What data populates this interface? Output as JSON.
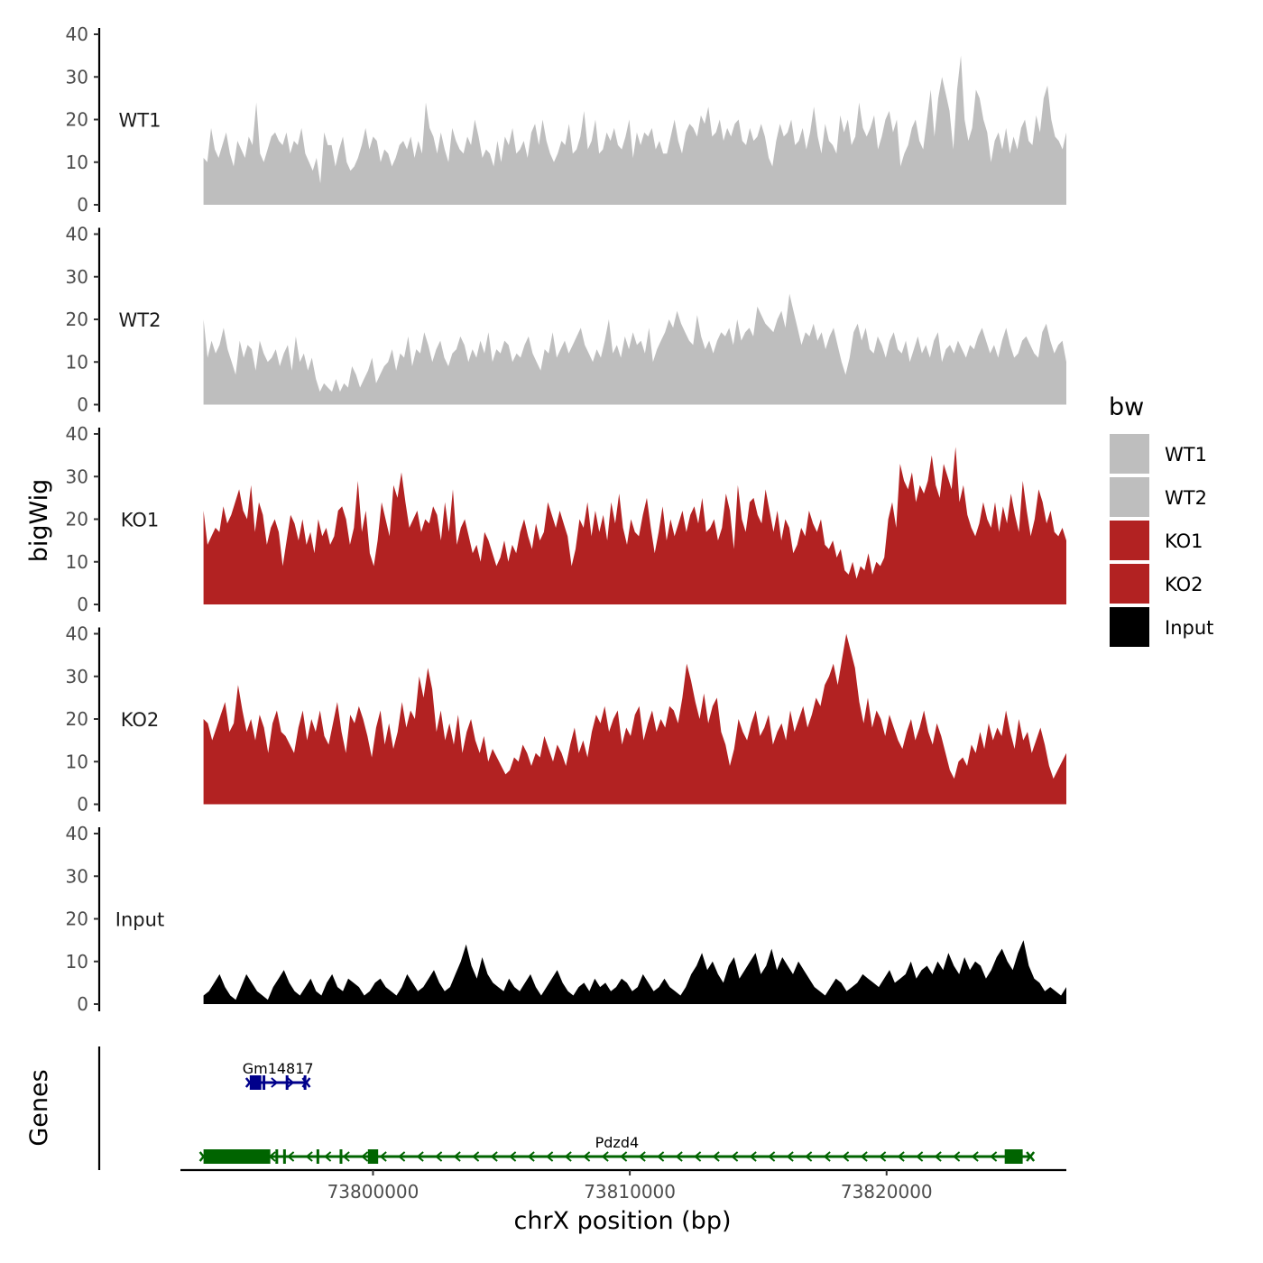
{
  "chart_data": {
    "type": "area",
    "ylabel": "bigWig",
    "xlabel": "chrX position (bp)",
    "xlim": [
      73792500,
      73827000
    ],
    "x_ticks": [
      73800000,
      73810000,
      73820000
    ],
    "x_tick_labels": [
      "73800000",
      "73810000",
      "73820000"
    ],
    "data_range": [
      73793400,
      73827000
    ],
    "ylim": [
      0,
      40
    ],
    "y_ticks": [
      0,
      10,
      20,
      30,
      40
    ],
    "y_tick_labels": [
      "0",
      "10",
      "20",
      "30",
      "40"
    ],
    "legend": {
      "title": "bw",
      "position": "right",
      "entries": [
        {
          "label": "WT1",
          "color": "#bebebe"
        },
        {
          "label": "WT2",
          "color": "#bebebe"
        },
        {
          "label": "KO1",
          "color": "#b22222"
        },
        {
          "label": "KO2",
          "color": "#b22222"
        },
        {
          "label": "Input",
          "color": "#000000"
        }
      ]
    },
    "series": [
      {
        "name": "WT1",
        "color": "#bebebe",
        "values": [
          11,
          10,
          18,
          13,
          11,
          14,
          17,
          12,
          9,
          15,
          13,
          11,
          16,
          14,
          24,
          12,
          10,
          13,
          16,
          17,
          15,
          14,
          17,
          12,
          15,
          14,
          18,
          12,
          10,
          8,
          11,
          5,
          17,
          14,
          14,
          9,
          13,
          16,
          10,
          8,
          9,
          11,
          14,
          18,
          13,
          16,
          15,
          10,
          13,
          12,
          9,
          11,
          14,
          15,
          13,
          16,
          11,
          15,
          12,
          24,
          18,
          16,
          12,
          17,
          13,
          10,
          18,
          15,
          13,
          12,
          16,
          14,
          20,
          16,
          11,
          13,
          12,
          9,
          15,
          10,
          16,
          14,
          18,
          12,
          13,
          15,
          11,
          17,
          19,
          14,
          20,
          15,
          12,
          10,
          12,
          15,
          14,
          19,
          12,
          13,
          16,
          22,
          13,
          15,
          20,
          12,
          13,
          17,
          15,
          18,
          14,
          13,
          16,
          20,
          11,
          17,
          14,
          17,
          16,
          18,
          13,
          15,
          12,
          12,
          16,
          20,
          15,
          12,
          17,
          19,
          18,
          16,
          21,
          19,
          23,
          16,
          17,
          20,
          15,
          18,
          16,
          19,
          20,
          15,
          14,
          18,
          15,
          16,
          19,
          16,
          11,
          9,
          15,
          19,
          16,
          17,
          20,
          14,
          15,
          18,
          13,
          17,
          23,
          16,
          12,
          19,
          15,
          14,
          12,
          21,
          17,
          20,
          14,
          16,
          24,
          18,
          16,
          18,
          21,
          13,
          16,
          20,
          22,
          17,
          20,
          9,
          12,
          14,
          18,
          20,
          15,
          13,
          20,
          27,
          16,
          25,
          30,
          26,
          22,
          13,
          27,
          35,
          20,
          15,
          18,
          27,
          25,
          20,
          17,
          10,
          15,
          17,
          13,
          18,
          12,
          16,
          13,
          18,
          20,
          15,
          14,
          21,
          17,
          25,
          28,
          20,
          16,
          15,
          13,
          17
        ]
      },
      {
        "name": "WT2",
        "color": "#bebebe",
        "values": [
          20,
          11,
          15,
          12,
          14,
          18,
          13,
          10,
          7,
          15,
          11,
          14,
          13,
          8,
          15,
          12,
          10,
          11,
          13,
          9,
          12,
          14,
          8,
          16,
          10,
          12,
          8,
          11,
          6,
          3,
          5,
          4,
          3,
          6,
          3,
          5,
          4,
          9,
          7,
          4,
          6,
          8,
          11,
          5,
          7,
          9,
          10,
          13,
          8,
          12,
          11,
          16,
          9,
          13,
          12,
          17,
          14,
          10,
          13,
          15,
          11,
          9,
          12,
          13,
          16,
          14,
          10,
          13,
          11,
          15,
          12,
          17,
          10,
          13,
          12,
          15,
          14,
          10,
          12,
          11,
          14,
          16,
          12,
          10,
          8,
          13,
          12,
          17,
          11,
          13,
          15,
          12,
          14,
          16,
          18,
          14,
          12,
          10,
          13,
          11,
          15,
          20,
          12,
          14,
          11,
          16,
          13,
          17,
          14,
          15,
          12,
          18,
          10,
          13,
          15,
          17,
          20,
          18,
          22,
          19,
          17,
          15,
          14,
          21,
          16,
          13,
          15,
          12,
          15,
          17,
          16,
          18,
          14,
          20,
          15,
          17,
          18,
          16,
          23,
          21,
          19,
          18,
          17,
          20,
          22,
          18,
          26,
          22,
          18,
          14,
          17,
          16,
          19,
          15,
          17,
          13,
          16,
          18,
          14,
          10,
          7,
          11,
          17,
          19,
          15,
          18,
          13,
          12,
          16,
          14,
          11,
          15,
          17,
          13,
          12,
          15,
          10,
          13,
          16,
          12,
          14,
          11,
          15,
          17,
          10,
          13,
          14,
          12,
          15,
          13,
          11,
          14,
          13,
          16,
          18,
          15,
          12,
          14,
          11,
          15,
          18,
          14,
          11,
          12,
          15,
          16,
          14,
          12,
          11,
          17,
          19,
          15,
          12,
          14,
          15,
          10
        ]
      },
      {
        "name": "KO1",
        "color": "#b22222",
        "values": [
          22,
          14,
          16,
          18,
          17,
          23,
          19,
          21,
          24,
          27,
          22,
          20,
          28,
          17,
          24,
          21,
          14,
          18,
          20,
          17,
          9,
          15,
          21,
          19,
          15,
          20,
          14,
          17,
          12,
          20,
          16,
          18,
          14,
          16,
          22,
          23,
          20,
          14,
          18,
          29,
          17,
          22,
          12,
          9,
          15,
          24,
          20,
          16,
          28,
          25,
          31,
          24,
          18,
          20,
          22,
          17,
          20,
          19,
          23,
          21,
          15,
          24,
          17,
          27,
          14,
          18,
          20,
          16,
          12,
          14,
          10,
          17,
          15,
          12,
          9,
          11,
          15,
          10,
          14,
          12,
          17,
          20,
          16,
          13,
          19,
          15,
          17,
          24,
          21,
          18,
          22,
          19,
          16,
          9,
          13,
          20,
          18,
          24,
          16,
          22,
          17,
          21,
          15,
          24,
          19,
          26,
          18,
          14,
          20,
          17,
          16,
          21,
          25,
          18,
          12,
          17,
          23,
          15,
          20,
          16,
          19,
          22,
          17,
          21,
          23,
          19,
          25,
          17,
          18,
          20,
          15,
          18,
          26,
          22,
          13,
          28,
          20,
          17,
          24,
          25,
          21,
          19,
          27,
          22,
          17,
          22,
          15,
          20,
          18,
          12,
          14,
          18,
          16,
          22,
          19,
          17,
          20,
          14,
          13,
          15,
          11,
          13,
          8,
          7,
          10,
          6,
          9,
          8,
          12,
          7,
          10,
          9,
          11,
          20,
          24,
          18,
          33,
          29,
          27,
          31,
          24,
          28,
          26,
          29,
          35,
          28,
          25,
          33,
          30,
          27,
          37,
          24,
          28,
          21,
          18,
          16,
          19,
          24,
          20,
          18,
          24,
          17,
          23,
          19,
          26,
          21,
          17,
          29,
          22,
          16,
          20,
          27,
          24,
          19,
          22,
          17,
          16,
          18,
          15
        ]
      },
      {
        "name": "KO2",
        "color": "#b22222",
        "values": [
          20,
          19,
          15,
          18,
          21,
          24,
          17,
          19,
          28,
          22,
          17,
          20,
          15,
          21,
          18,
          12,
          19,
          22,
          17,
          16,
          14,
          12,
          18,
          22,
          15,
          20,
          17,
          22,
          16,
          14,
          19,
          24,
          17,
          12,
          21,
          19,
          23,
          20,
          16,
          11,
          18,
          22,
          14,
          19,
          13,
          17,
          24,
          18,
          22,
          20,
          30,
          25,
          32,
          27,
          17,
          22,
          15,
          19,
          14,
          21,
          12,
          17,
          20,
          15,
          12,
          16,
          10,
          13,
          11,
          9,
          7,
          8,
          11,
          10,
          14,
          12,
          9,
          12,
          11,
          16,
          13,
          10,
          14,
          12,
          9,
          14,
          18,
          12,
          15,
          11,
          17,
          21,
          19,
          23,
          17,
          20,
          22,
          14,
          18,
          16,
          21,
          23,
          15,
          19,
          22,
          17,
          20,
          18,
          23,
          22,
          19,
          25,
          33,
          29,
          24,
          20,
          26,
          19,
          23,
          25,
          17,
          14,
          9,
          13,
          20,
          17,
          15,
          19,
          22,
          16,
          18,
          21,
          14,
          17,
          19,
          15,
          22,
          17,
          20,
          23,
          18,
          21,
          25,
          23,
          28,
          30,
          33,
          28,
          34,
          40,
          36,
          32,
          24,
          19,
          25,
          18,
          22,
          20,
          16,
          21,
          18,
          15,
          13,
          17,
          20,
          15,
          18,
          22,
          17,
          14,
          19,
          16,
          12,
          8,
          6,
          10,
          11,
          9,
          14,
          12,
          17,
          13,
          19,
          15,
          18,
          16,
          22,
          17,
          13,
          20,
          15,
          17,
          12,
          15,
          18,
          14,
          9,
          6,
          8,
          10,
          12
        ]
      },
      {
        "name": "Input",
        "color": "#000000",
        "values": [
          2,
          3,
          5,
          7,
          4,
          2,
          1,
          4,
          7,
          5,
          3,
          2,
          1,
          4,
          6,
          8,
          5,
          3,
          2,
          4,
          6,
          3,
          2,
          5,
          7,
          4,
          3,
          6,
          5,
          4,
          2,
          3,
          5,
          6,
          4,
          3,
          2,
          4,
          7,
          5,
          3,
          4,
          6,
          8,
          5,
          3,
          4,
          7,
          10,
          14,
          9,
          6,
          11,
          7,
          5,
          4,
          3,
          6,
          4,
          3,
          5,
          7,
          4,
          2,
          4,
          6,
          8,
          5,
          3,
          2,
          4,
          5,
          3,
          6,
          4,
          5,
          3,
          4,
          6,
          5,
          3,
          4,
          7,
          5,
          3,
          4,
          6,
          4,
          3,
          2,
          4,
          7,
          9,
          12,
          8,
          10,
          7,
          5,
          9,
          11,
          6,
          8,
          10,
          12,
          7,
          9,
          13,
          8,
          11,
          9,
          7,
          10,
          8,
          6,
          4,
          3,
          2,
          4,
          6,
          5,
          3,
          4,
          5,
          7,
          6,
          5,
          4,
          6,
          8,
          5,
          6,
          7,
          10,
          6,
          8,
          9,
          7,
          10,
          8,
          12,
          9,
          7,
          11,
          8,
          10,
          9,
          6,
          8,
          11,
          13,
          10,
          8,
          12,
          15,
          9,
          6,
          5,
          3,
          4,
          3,
          2,
          4
        ]
      }
    ]
  },
  "genes": {
    "title": "Genes",
    "items": [
      {
        "name": "Gm14817",
        "strand": "+",
        "color": "#00008b",
        "start": 73795200,
        "end": 73797400,
        "exons": [
          [
            73795200,
            73795650
          ],
          [
            73795700,
            73795800
          ],
          [
            73796600,
            73796700
          ],
          [
            73797300,
            73797400
          ]
        ]
      },
      {
        "name": "Pdzd4",
        "strand": "-",
        "color": "#006400",
        "start": 73793400,
        "end": 73825600,
        "exons": [
          [
            73793400,
            73796000
          ],
          [
            73796200,
            73796300
          ],
          [
            73796500,
            73796600
          ],
          [
            73797800,
            73797900
          ],
          [
            73798700,
            73798800
          ],
          [
            73799800,
            73800200
          ],
          [
            73824600,
            73825300
          ]
        ]
      }
    ]
  }
}
